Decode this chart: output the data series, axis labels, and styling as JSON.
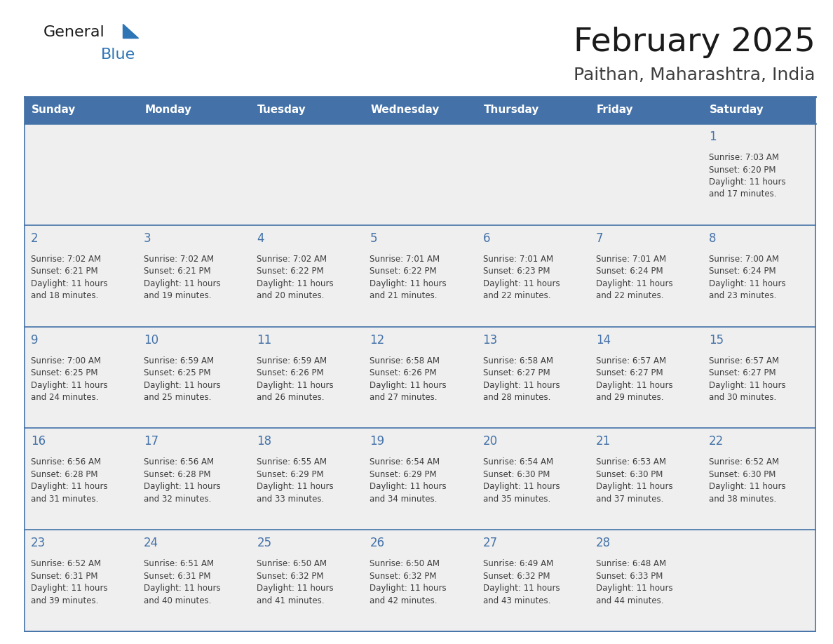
{
  "title": "February 2025",
  "subtitle": "Paithan, Maharashtra, India",
  "days_of_week": [
    "Sunday",
    "Monday",
    "Tuesday",
    "Wednesday",
    "Thursday",
    "Friday",
    "Saturday"
  ],
  "header_bg": "#4472A8",
  "header_text": "#FFFFFF",
  "row_bg_light": "#EFEFEF",
  "row_bg_white": "#FFFFFF",
  "border_color": "#4472A8",
  "day_num_color": "#4472A8",
  "text_color": "#3D3D3D",
  "title_color": "#1A1A1A",
  "subtitle_color": "#3D3D3D",
  "general_text_color": "#1A1A1A",
  "blue_text_color": "#2E75B6",
  "logo_triangle_color": "#2E75B6",
  "calendar_data": [
    {
      "day": 1,
      "col": 6,
      "row": 0,
      "sunrise": "7:03 AM",
      "sunset": "6:20 PM",
      "daylight_line1": "Daylight: 11 hours",
      "daylight_line2": "and 17 minutes."
    },
    {
      "day": 2,
      "col": 0,
      "row": 1,
      "sunrise": "7:02 AM",
      "sunset": "6:21 PM",
      "daylight_line1": "Daylight: 11 hours",
      "daylight_line2": "and 18 minutes."
    },
    {
      "day": 3,
      "col": 1,
      "row": 1,
      "sunrise": "7:02 AM",
      "sunset": "6:21 PM",
      "daylight_line1": "Daylight: 11 hours",
      "daylight_line2": "and 19 minutes."
    },
    {
      "day": 4,
      "col": 2,
      "row": 1,
      "sunrise": "7:02 AM",
      "sunset": "6:22 PM",
      "daylight_line1": "Daylight: 11 hours",
      "daylight_line2": "and 20 minutes."
    },
    {
      "day": 5,
      "col": 3,
      "row": 1,
      "sunrise": "7:01 AM",
      "sunset": "6:22 PM",
      "daylight_line1": "Daylight: 11 hours",
      "daylight_line2": "and 21 minutes."
    },
    {
      "day": 6,
      "col": 4,
      "row": 1,
      "sunrise": "7:01 AM",
      "sunset": "6:23 PM",
      "daylight_line1": "Daylight: 11 hours",
      "daylight_line2": "and 22 minutes."
    },
    {
      "day": 7,
      "col": 5,
      "row": 1,
      "sunrise": "7:01 AM",
      "sunset": "6:24 PM",
      "daylight_line1": "Daylight: 11 hours",
      "daylight_line2": "and 22 minutes."
    },
    {
      "day": 8,
      "col": 6,
      "row": 1,
      "sunrise": "7:00 AM",
      "sunset": "6:24 PM",
      "daylight_line1": "Daylight: 11 hours",
      "daylight_line2": "and 23 minutes."
    },
    {
      "day": 9,
      "col": 0,
      "row": 2,
      "sunrise": "7:00 AM",
      "sunset": "6:25 PM",
      "daylight_line1": "Daylight: 11 hours",
      "daylight_line2": "and 24 minutes."
    },
    {
      "day": 10,
      "col": 1,
      "row": 2,
      "sunrise": "6:59 AM",
      "sunset": "6:25 PM",
      "daylight_line1": "Daylight: 11 hours",
      "daylight_line2": "and 25 minutes."
    },
    {
      "day": 11,
      "col": 2,
      "row": 2,
      "sunrise": "6:59 AM",
      "sunset": "6:26 PM",
      "daylight_line1": "Daylight: 11 hours",
      "daylight_line2": "and 26 minutes."
    },
    {
      "day": 12,
      "col": 3,
      "row": 2,
      "sunrise": "6:58 AM",
      "sunset": "6:26 PM",
      "daylight_line1": "Daylight: 11 hours",
      "daylight_line2": "and 27 minutes."
    },
    {
      "day": 13,
      "col": 4,
      "row": 2,
      "sunrise": "6:58 AM",
      "sunset": "6:27 PM",
      "daylight_line1": "Daylight: 11 hours",
      "daylight_line2": "and 28 minutes."
    },
    {
      "day": 14,
      "col": 5,
      "row": 2,
      "sunrise": "6:57 AM",
      "sunset": "6:27 PM",
      "daylight_line1": "Daylight: 11 hours",
      "daylight_line2": "and 29 minutes."
    },
    {
      "day": 15,
      "col": 6,
      "row": 2,
      "sunrise": "6:57 AM",
      "sunset": "6:27 PM",
      "daylight_line1": "Daylight: 11 hours",
      "daylight_line2": "and 30 minutes."
    },
    {
      "day": 16,
      "col": 0,
      "row": 3,
      "sunrise": "6:56 AM",
      "sunset": "6:28 PM",
      "daylight_line1": "Daylight: 11 hours",
      "daylight_line2": "and 31 minutes."
    },
    {
      "day": 17,
      "col": 1,
      "row": 3,
      "sunrise": "6:56 AM",
      "sunset": "6:28 PM",
      "daylight_line1": "Daylight: 11 hours",
      "daylight_line2": "and 32 minutes."
    },
    {
      "day": 18,
      "col": 2,
      "row": 3,
      "sunrise": "6:55 AM",
      "sunset": "6:29 PM",
      "daylight_line1": "Daylight: 11 hours",
      "daylight_line2": "and 33 minutes."
    },
    {
      "day": 19,
      "col": 3,
      "row": 3,
      "sunrise": "6:54 AM",
      "sunset": "6:29 PM",
      "daylight_line1": "Daylight: 11 hours",
      "daylight_line2": "and 34 minutes."
    },
    {
      "day": 20,
      "col": 4,
      "row": 3,
      "sunrise": "6:54 AM",
      "sunset": "6:30 PM",
      "daylight_line1": "Daylight: 11 hours",
      "daylight_line2": "and 35 minutes."
    },
    {
      "day": 21,
      "col": 5,
      "row": 3,
      "sunrise": "6:53 AM",
      "sunset": "6:30 PM",
      "daylight_line1": "Daylight: 11 hours",
      "daylight_line2": "and 37 minutes."
    },
    {
      "day": 22,
      "col": 6,
      "row": 3,
      "sunrise": "6:52 AM",
      "sunset": "6:30 PM",
      "daylight_line1": "Daylight: 11 hours",
      "daylight_line2": "and 38 minutes."
    },
    {
      "day": 23,
      "col": 0,
      "row": 4,
      "sunrise": "6:52 AM",
      "sunset": "6:31 PM",
      "daylight_line1": "Daylight: 11 hours",
      "daylight_line2": "and 39 minutes."
    },
    {
      "day": 24,
      "col": 1,
      "row": 4,
      "sunrise": "6:51 AM",
      "sunset": "6:31 PM",
      "daylight_line1": "Daylight: 11 hours",
      "daylight_line2": "and 40 minutes."
    },
    {
      "day": 25,
      "col": 2,
      "row": 4,
      "sunrise": "6:50 AM",
      "sunset": "6:32 PM",
      "daylight_line1": "Daylight: 11 hours",
      "daylight_line2": "and 41 minutes."
    },
    {
      "day": 26,
      "col": 3,
      "row": 4,
      "sunrise": "6:50 AM",
      "sunset": "6:32 PM",
      "daylight_line1": "Daylight: 11 hours",
      "daylight_line2": "and 42 minutes."
    },
    {
      "day": 27,
      "col": 4,
      "row": 4,
      "sunrise": "6:49 AM",
      "sunset": "6:32 PM",
      "daylight_line1": "Daylight: 11 hours",
      "daylight_line2": "and 43 minutes."
    },
    {
      "day": 28,
      "col": 5,
      "row": 4,
      "sunrise": "6:48 AM",
      "sunset": "6:33 PM",
      "daylight_line1": "Daylight: 11 hours",
      "daylight_line2": "and 44 minutes."
    }
  ],
  "num_rows": 5,
  "num_cols": 7,
  "figwidth": 11.88,
  "figheight": 9.18,
  "dpi": 100
}
